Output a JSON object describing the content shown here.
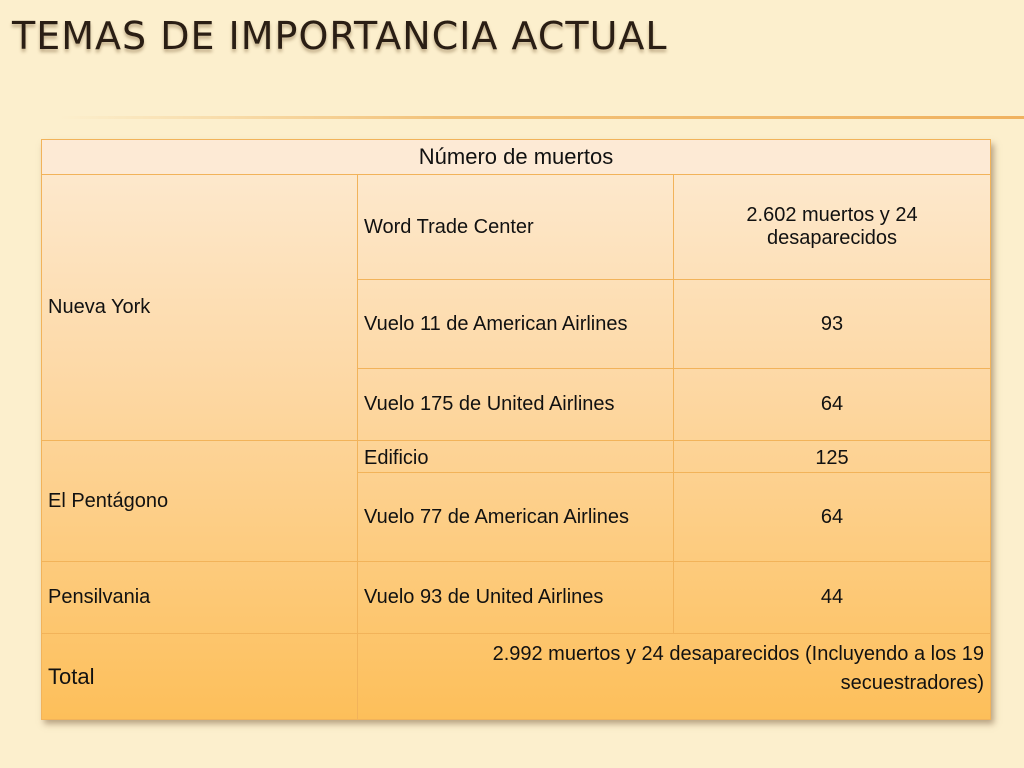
{
  "slide": {
    "title": "TEMAS DE IMPORTANCIA ACTUAL"
  },
  "table": {
    "header": "Número de muertos",
    "groups": [
      {
        "location": "Nueva York",
        "rows": [
          {
            "event": "Word Trade Center",
            "deaths": "2.602 muertos y 24 desaparecidos"
          },
          {
            "event": "Vuelo 11 de American Airlines",
            "deaths": "93"
          },
          {
            "event": "Vuelo 175 de United Airlines",
            "deaths": "64"
          }
        ]
      },
      {
        "location": "El Pentágono",
        "rows": [
          {
            "event": "Edificio",
            "deaths": "125"
          },
          {
            "event": "Vuelo 77 de American Airlines",
            "deaths": "64"
          }
        ]
      },
      {
        "location": "Pensilvania",
        "rows": [
          {
            "event": "Vuelo 93 de United Airlines",
            "deaths": "44"
          }
        ]
      }
    ],
    "total": {
      "label": "Total",
      "value": "2.992 muertos y 24 desaparecidos (Incluyendo a los 19 secuestradores)"
    }
  }
}
